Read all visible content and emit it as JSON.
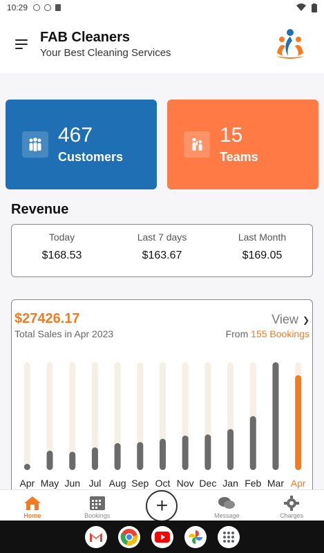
{
  "status_bar": {
    "time": "10:29"
  },
  "header": {
    "title": "FAB Cleaners",
    "subtitle": "Your Best Cleaning Services"
  },
  "cards": {
    "customers": {
      "count": "467",
      "label": "Customers",
      "color": "#1e6fb3",
      "icon": "people-icon"
    },
    "teams": {
      "count": "15",
      "label": "Teams",
      "color": "#ff7a45",
      "icon": "team-icon"
    }
  },
  "revenue": {
    "title": "Revenue",
    "items": [
      {
        "label": "Today",
        "value": "$168.53"
      },
      {
        "label": "Last 7 days",
        "value": "$163.67"
      },
      {
        "label": "Last Month",
        "value": "$169.05"
      }
    ]
  },
  "sales": {
    "total": "$27426.17",
    "subtitle": "Total Sales in Apr 2023",
    "view_label": "View",
    "from_prefix": "From",
    "bookings": "155 Bookings"
  },
  "chart_data": {
    "type": "bar",
    "categories": [
      "Apr",
      "May",
      "Jun",
      "Jul",
      "Aug",
      "Sep",
      "Oct",
      "Nov",
      "Dec",
      "Jan",
      "Feb",
      "Mar",
      "Apr"
    ],
    "values": [
      5,
      18,
      17,
      21,
      25,
      26,
      29,
      32,
      33,
      38,
      50,
      100,
      88
    ],
    "ylim": [
      0,
      100
    ],
    "highlight_index": 12,
    "bar_color": "#6b6b6b",
    "track_color": "#f6efe6",
    "highlight_color": "#f47b20"
  },
  "bottom_nav": [
    {
      "label": "Home",
      "icon": "home-icon",
      "active": true
    },
    {
      "label": "Bookings",
      "icon": "calendar-icon",
      "active": false
    },
    {
      "label": "",
      "icon": "add-icon",
      "active": false
    },
    {
      "label": "Message",
      "icon": "message-icon",
      "active": false
    },
    {
      "label": "Charges",
      "icon": "gear-icon",
      "active": false
    }
  ],
  "dock_apps": [
    "gmail-icon",
    "chrome-icon",
    "youtube-icon",
    "photos-icon",
    "apps-icon"
  ]
}
